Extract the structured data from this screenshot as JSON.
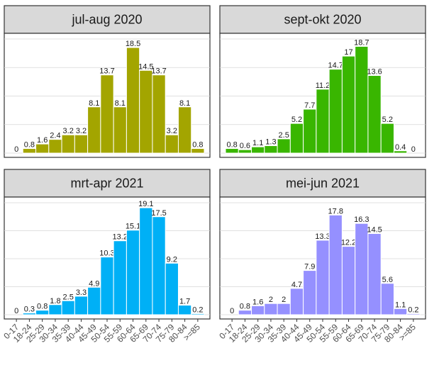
{
  "chart_data": {
    "type": "bar",
    "layout": "facet-grid 2x2",
    "categories": [
      "0-17",
      "18-24",
      "25-29",
      "30-34",
      "35-39",
      "40-44",
      "45-49",
      "50-54",
      "55-59",
      "60-64",
      "65-69",
      "70-74",
      "75-79",
      "80-84",
      ">=85"
    ],
    "ylim": [
      0,
      20
    ],
    "grid": true,
    "panels": [
      {
        "title": "jul-aug 2020",
        "color": "#a3a500",
        "values": [
          0,
          0.8,
          1.6,
          2.4,
          3.2,
          3.2,
          8.1,
          13.7,
          8.1,
          18.5,
          14.5,
          13.7,
          3.2,
          8.1,
          0.8
        ]
      },
      {
        "title": "sept-okt 2020",
        "color": "#39b600",
        "values": [
          0.8,
          0.6,
          1.1,
          1.3,
          2.5,
          5.2,
          7.7,
          11.2,
          14.7,
          17,
          18.7,
          13.6,
          5.2,
          0.4,
          0
        ]
      },
      {
        "title": "mrt-apr 2021",
        "color": "#00b0f6",
        "values": [
          0,
          0.3,
          0.8,
          1.8,
          2.5,
          3.3,
          4.9,
          10.3,
          13.2,
          15.1,
          19.1,
          17.5,
          9.2,
          1.7,
          0.2
        ]
      },
      {
        "title": "mei-jun 2021",
        "color": "#9590ff",
        "values": [
          0,
          0.8,
          1.6,
          2,
          2,
          4.7,
          7.9,
          13.3,
          17.8,
          12.2,
          16.3,
          14.5,
          5.6,
          1.1,
          0.2
        ]
      }
    ]
  }
}
